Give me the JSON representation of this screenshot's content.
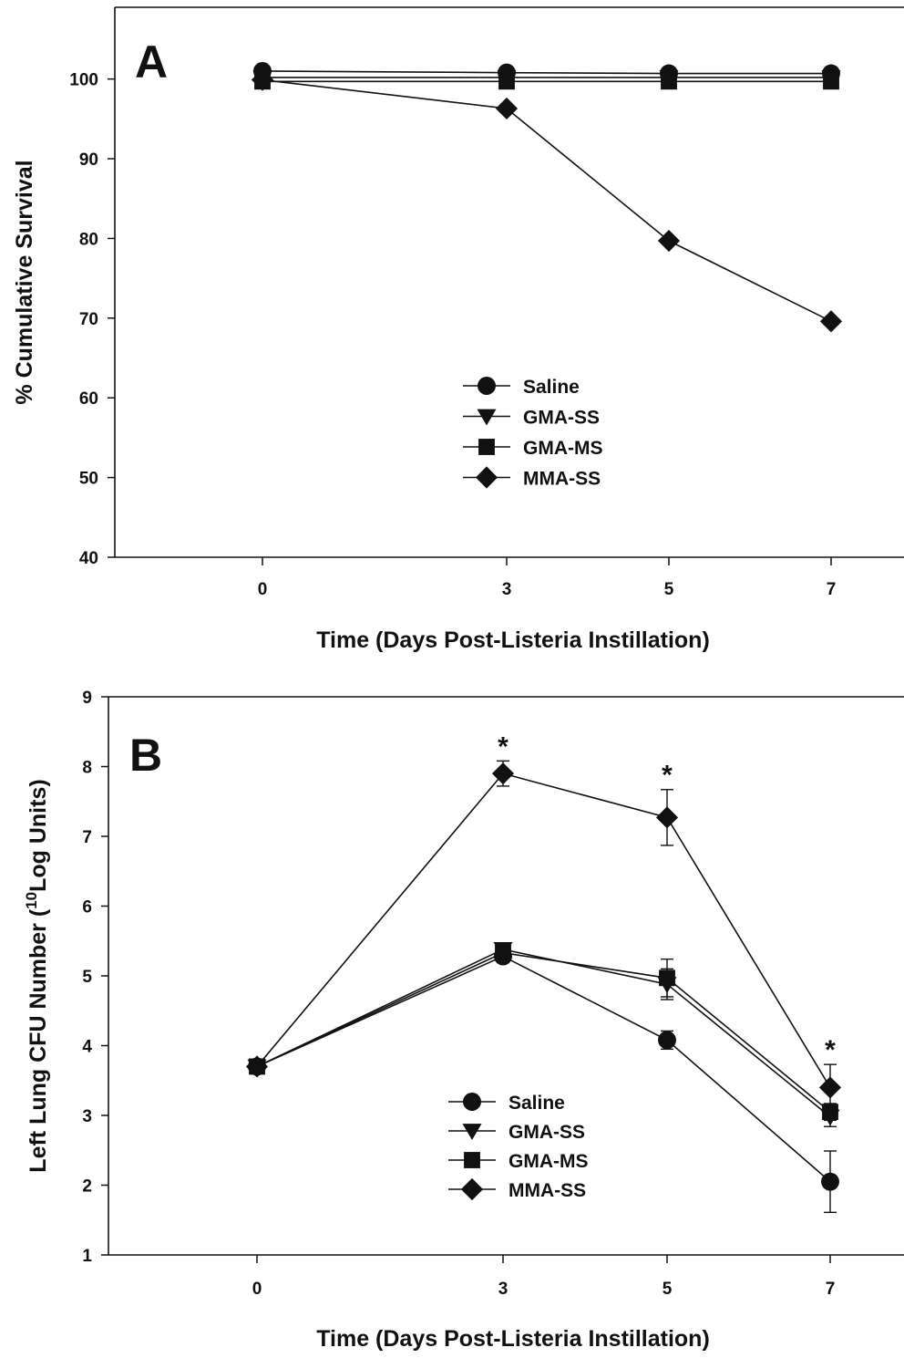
{
  "chart_data": [
    {
      "type": "line",
      "panel_label": "A",
      "xlabel": "Time (Days Post-Listeria Instillation)",
      "ylabel": "% Cumulative Survival",
      "x": [
        0,
        3,
        5,
        7
      ],
      "x_tick_labels": [
        "0",
        "3",
        "5",
        "7"
      ],
      "ylim": [
        40,
        109
      ],
      "y_ticks": [
        40,
        50,
        60,
        70,
        80,
        90,
        100
      ],
      "grid": false,
      "legend_position": "center",
      "series": [
        {
          "name": "Saline",
          "marker": "circle",
          "values": [
            101,
            100.8,
            100.7,
            100.7
          ]
        },
        {
          "name": "GMA-SS",
          "marker": "triangle-down",
          "values": [
            100.2,
            100.2,
            100.2,
            100.2
          ]
        },
        {
          "name": "GMA-MS",
          "marker": "square",
          "values": [
            99.7,
            99.7,
            99.7,
            99.7
          ]
        },
        {
          "name": "MMA-SS",
          "marker": "diamond",
          "values": [
            99.9,
            96.3,
            79.7,
            69.6
          ]
        }
      ]
    },
    {
      "type": "line",
      "panel_label": "B",
      "xlabel": "Time (Days Post-Listeria Instillation)",
      "ylabel_parts": [
        "Left Lung CFU Number (",
        "10",
        "Log Units)"
      ],
      "x": [
        0,
        3,
        5,
        7
      ],
      "x_tick_labels": [
        "0",
        "3",
        "5",
        "7"
      ],
      "ylim": [
        1,
        9
      ],
      "y_ticks": [
        1,
        2,
        3,
        4,
        5,
        6,
        7,
        8,
        9
      ],
      "grid": false,
      "legend_position": "lower-center",
      "significance_marker": "*",
      "significant_x": [
        3,
        5,
        7
      ],
      "series": [
        {
          "name": "Saline",
          "marker": "circle",
          "values": [
            3.7,
            5.28,
            4.08,
            2.05
          ],
          "errors": [
            0,
            0.05,
            0.13,
            0.44
          ]
        },
        {
          "name": "GMA-SS",
          "marker": "triangle-down",
          "values": [
            3.7,
            5.38,
            4.88,
            2.98
          ],
          "errors": [
            0,
            0.05,
            0.22,
            0.14
          ]
        },
        {
          "name": "GMA-MS",
          "marker": "square",
          "values": [
            3.7,
            5.33,
            4.97,
            3.05
          ],
          "errors": [
            0,
            0.05,
            0.27,
            0.12
          ]
        },
        {
          "name": "MMA-SS",
          "marker": "diamond",
          "values": [
            3.7,
            7.9,
            7.27,
            3.4
          ],
          "errors": [
            0,
            0.18,
            0.4,
            0.33
          ]
        }
      ]
    }
  ]
}
